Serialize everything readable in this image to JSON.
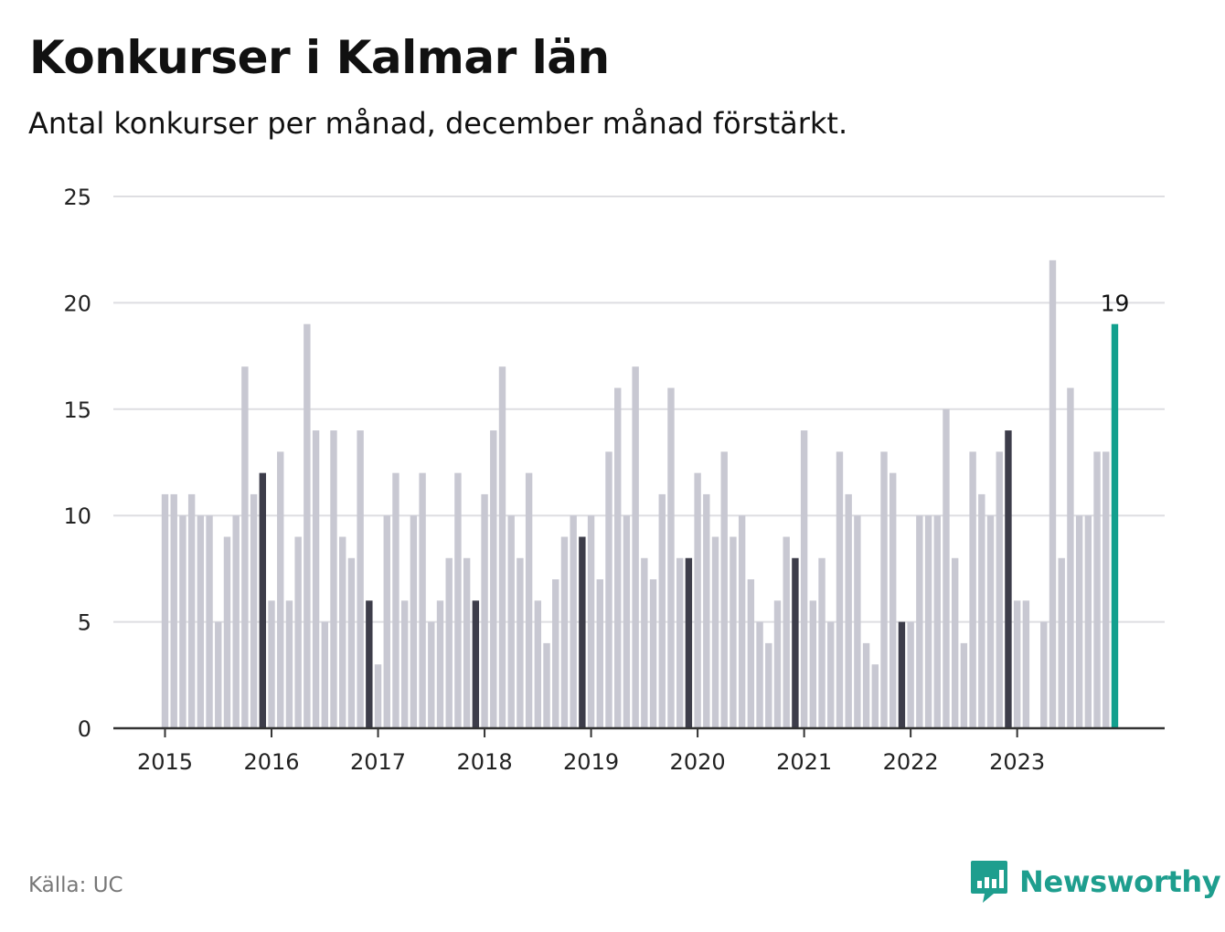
{
  "chart_data": {
    "type": "bar",
    "title": "Konkurser i Kalmar län",
    "subtitle": "Antal konkurser per månad, december månad förstärkt.",
    "source": "Källa: UC",
    "x_tick_labels": [
      "2015",
      "2016",
      "2017",
      "2018",
      "2019",
      "2020",
      "2021",
      "2022",
      "2023"
    ],
    "y_ticks": [
      0,
      5,
      10,
      15,
      20,
      25
    ],
    "ylim": [
      0,
      25
    ],
    "grid": true,
    "start": "2015-01",
    "values": [
      11,
      11,
      10,
      11,
      10,
      10,
      5,
      9,
      10,
      17,
      11,
      12,
      6,
      13,
      6,
      9,
      19,
      14,
      5,
      14,
      9,
      8,
      14,
      6,
      3,
      10,
      12,
      6,
      10,
      12,
      5,
      6,
      8,
      12,
      8,
      6,
      11,
      14,
      17,
      10,
      8,
      12,
      6,
      4,
      7,
      9,
      10,
      9,
      10,
      7,
      13,
      16,
      10,
      17,
      8,
      7,
      11,
      16,
      8,
      8,
      12,
      11,
      9,
      13,
      9,
      10,
      7,
      5,
      4,
      6,
      9,
      8,
      14,
      6,
      8,
      5,
      13,
      11,
      10,
      4,
      3,
      13,
      12,
      5,
      5,
      10,
      10,
      10,
      15,
      8,
      4,
      13,
      11,
      10,
      13,
      14,
      6,
      6,
      0,
      5,
      22,
      8,
      16,
      10,
      10,
      13,
      13,
      19
    ],
    "last_value_label": "19",
    "colors": {
      "regular": "#c8c8d2",
      "december": "#3d3d4a",
      "latest": "#12a08e",
      "grid": "#dedee2",
      "axis": "#333333"
    }
  },
  "brand": {
    "name": "Newsworthy",
    "icon": "newsworthy-logo-icon",
    "color": "#1e9e8e"
  }
}
